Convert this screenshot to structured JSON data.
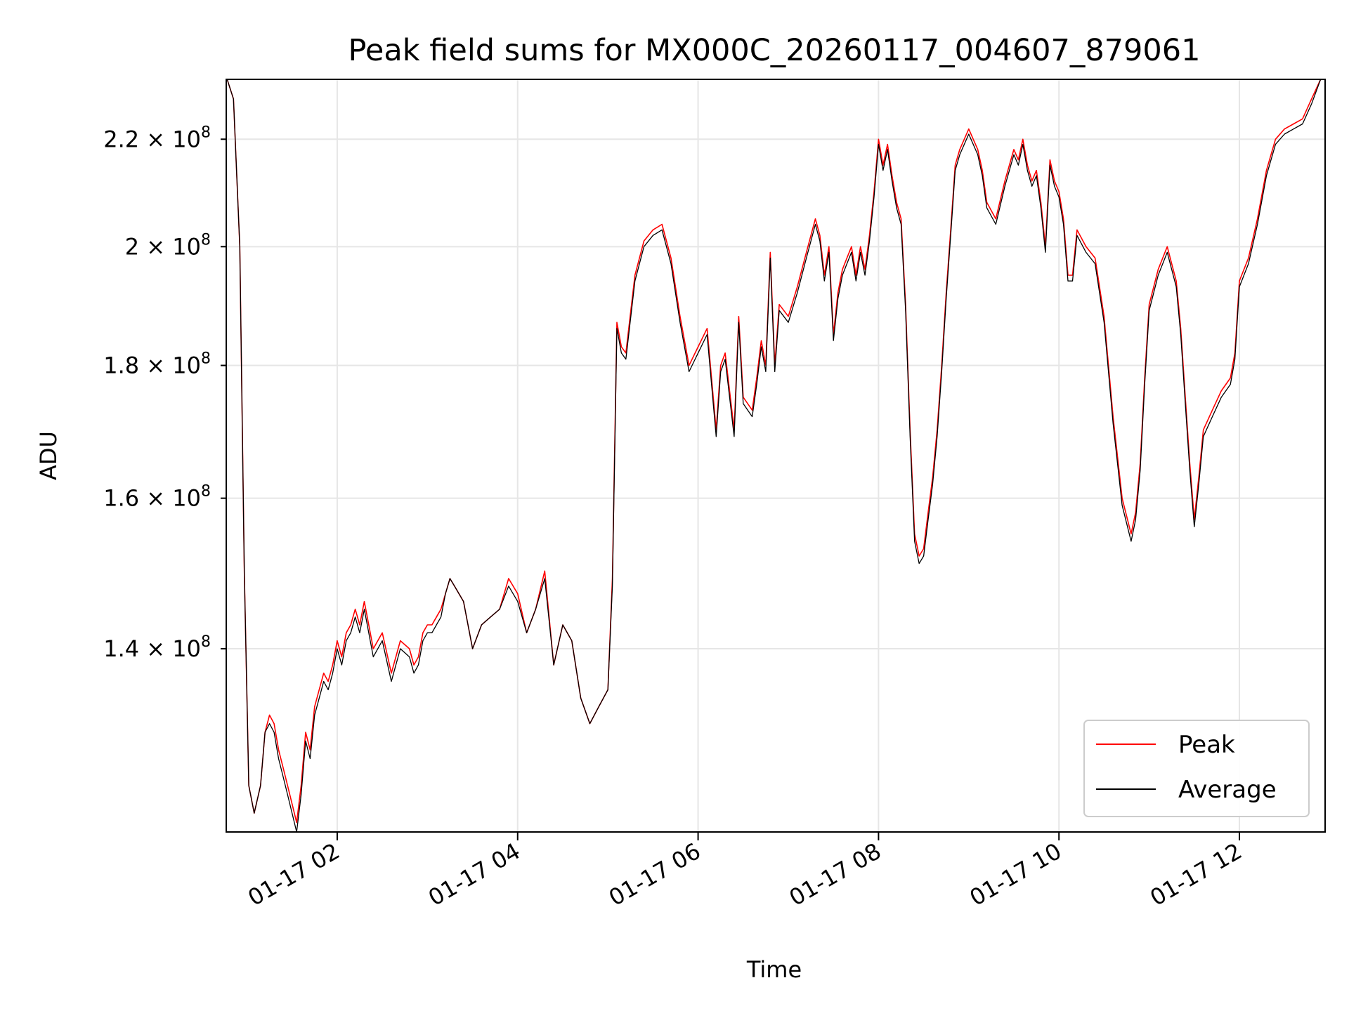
{
  "chart_data": {
    "type": "line",
    "title": "Peak field sums for MX000C_20260117_004607_879061",
    "xlabel": "Time",
    "ylabel": "ADU",
    "yscale": "log",
    "ylim": [
      119000000,
      232000000
    ],
    "xlim": [
      0.77,
      12.95
    ],
    "grid": true,
    "legend_position": "lower-right",
    "x_ticks": [
      {
        "value": 2,
        "label": "01-17 02"
      },
      {
        "value": 4,
        "label": "01-17 04"
      },
      {
        "value": 6,
        "label": "01-17 06"
      },
      {
        "value": 8,
        "label": "01-17 08"
      },
      {
        "value": 10,
        "label": "01-17 10"
      },
      {
        "value": 12,
        "label": "01-17 12"
      }
    ],
    "y_ticks": [
      {
        "value": 140000000,
        "mantissa": "1.4",
        "base": "10",
        "exp": "8"
      },
      {
        "value": 160000000,
        "mantissa": "1.6",
        "base": "10",
        "exp": "8"
      },
      {
        "value": 180000000,
        "mantissa": "1.8",
        "base": "10",
        "exp": "8"
      },
      {
        "value": 200000000,
        "mantissa": "2",
        "base": "10",
        "exp": "8"
      },
      {
        "value": 220000000,
        "mantissa": "2.2",
        "base": "10",
        "exp": "8"
      }
    ],
    "x_hours": [
      0.78,
      0.85,
      0.92,
      0.97,
      1.02,
      1.08,
      1.15,
      1.2,
      1.25,
      1.3,
      1.35,
      1.4,
      1.45,
      1.5,
      1.55,
      1.6,
      1.65,
      1.7,
      1.75,
      1.8,
      1.85,
      1.9,
      1.95,
      2.0,
      2.05,
      2.1,
      2.15,
      2.2,
      2.25,
      2.3,
      2.4,
      2.5,
      2.6,
      2.7,
      2.8,
      2.85,
      2.9,
      2.95,
      3.0,
      3.05,
      3.1,
      3.15,
      3.2,
      3.25,
      3.3,
      3.4,
      3.5,
      3.6,
      3.7,
      3.8,
      3.9,
      4.0,
      4.1,
      4.2,
      4.3,
      4.4,
      4.5,
      4.55,
      4.6,
      4.7,
      4.8,
      4.9,
      5.0,
      5.05,
      5.1,
      5.15,
      5.2,
      5.3,
      5.4,
      5.5,
      5.6,
      5.7,
      5.8,
      5.9,
      6.0,
      6.1,
      6.2,
      6.25,
      6.3,
      6.4,
      6.45,
      6.5,
      6.6,
      6.65,
      6.7,
      6.75,
      6.8,
      6.85,
      6.9,
      7.0,
      7.1,
      7.2,
      7.3,
      7.35,
      7.4,
      7.45,
      7.5,
      7.55,
      7.6,
      7.65,
      7.7,
      7.75,
      7.8,
      7.85,
      7.9,
      7.95,
      8.0,
      8.05,
      8.1,
      8.15,
      8.2,
      8.25,
      8.3,
      8.35,
      8.4,
      8.45,
      8.5,
      8.55,
      8.6,
      8.65,
      8.7,
      8.75,
      8.8,
      8.85,
      8.9,
      8.95,
      9.0,
      9.05,
      9.1,
      9.15,
      9.2,
      9.3,
      9.4,
      9.5,
      9.55,
      9.6,
      9.65,
      9.7,
      9.75,
      9.8,
      9.85,
      9.9,
      9.95,
      10.0,
      10.05,
      10.1,
      10.15,
      10.2,
      10.3,
      10.4,
      10.5,
      10.6,
      10.7,
      10.8,
      10.85,
      10.9,
      10.95,
      11.0,
      11.1,
      11.2,
      11.3,
      11.35,
      11.4,
      11.45,
      11.5,
      11.55,
      11.6,
      11.7,
      11.8,
      11.9,
      11.95,
      12.0,
      12.1,
      12.2,
      12.3,
      12.4,
      12.5,
      12.6,
      12.7,
      12.8,
      12.9
    ],
    "series": [
      {
        "name": "Peak",
        "color": "#ff0000",
        "values": [
          232,
          228,
          200,
          150,
          124,
          121,
          124,
          130,
          132,
          131,
          128,
          126,
          124,
          122,
          120,
          124,
          130,
          128,
          133,
          135,
          137,
          136,
          138,
          141,
          139,
          142,
          143,
          145,
          143,
          146,
          140,
          142,
          137,
          141,
          140,
          138,
          139,
          142,
          143,
          143,
          144,
          145,
          147,
          149,
          148,
          146,
          140,
          143,
          144,
          145,
          149,
          147,
          142,
          145,
          150,
          138,
          143,
          142,
          141,
          134,
          131,
          133,
          135,
          149,
          187,
          183,
          182,
          195,
          201,
          203,
          204,
          198,
          188,
          180,
          183,
          186,
          170,
          180,
          182,
          170,
          188,
          175,
          173,
          178,
          184,
          180,
          199,
          180,
          190,
          188,
          193,
          199,
          205,
          202,
          195,
          200,
          185,
          192,
          196,
          198,
          200,
          195,
          200,
          196,
          202,
          210,
          220,
          215,
          219,
          213,
          208,
          205,
          190,
          170,
          155,
          152,
          153,
          158,
          163,
          170,
          180,
          192,
          203,
          215,
          218,
          220,
          222,
          220,
          218,
          214,
          208,
          205,
          212,
          218,
          216,
          220,
          215,
          212,
          214,
          208,
          200,
          216,
          212,
          210,
          205,
          195,
          195,
          203,
          200,
          198,
          188,
          172,
          160,
          155,
          158,
          165,
          178,
          190,
          196,
          200,
          194,
          186,
          175,
          165,
          157,
          163,
          170,
          173,
          176,
          178,
          182,
          194,
          198,
          205,
          214,
          220,
          222,
          223,
          224,
          228,
          232
        ]
      },
      {
        "name": "Average",
        "color": "#000000",
        "values": [
          232,
          228,
          200,
          150,
          124,
          121,
          124,
          130,
          131,
          130,
          127,
          125,
          123,
          121,
          119,
          123,
          129,
          127,
          132,
          134,
          136,
          135,
          137,
          140,
          138,
          141,
          142,
          144,
          142,
          145,
          139,
          141,
          136,
          140,
          139,
          137,
          138,
          141,
          142,
          142,
          143,
          144,
          147,
          149,
          148,
          146,
          140,
          143,
          144,
          145,
          148,
          146,
          142,
          145,
          149,
          138,
          143,
          142,
          141,
          134,
          131,
          133,
          135,
          148,
          186,
          182,
          181,
          194,
          200,
          202,
          203,
          197,
          187,
          179,
          182,
          185,
          169,
          179,
          181,
          169,
          187,
          174,
          172,
          177,
          183,
          179,
          198,
          179,
          189,
          187,
          192,
          198,
          204,
          201,
          194,
          199,
          184,
          191,
          195,
          197,
          199,
          194,
          199,
          195,
          201,
          209,
          219,
          214,
          218,
          212,
          207,
          204,
          189,
          169,
          154,
          151,
          152,
          157,
          162,
          169,
          179,
          191,
          202,
          214,
          217,
          219,
          221,
          219,
          217,
          213,
          207,
          204,
          211,
          217,
          215,
          219,
          214,
          211,
          213,
          207,
          199,
          215,
          211,
          209,
          204,
          194,
          194,
          202,
          199,
          197,
          187,
          171,
          159,
          154,
          157,
          164,
          177,
          189,
          195,
          199,
          193,
          185,
          174,
          164,
          156,
          162,
          169,
          172,
          175,
          177,
          181,
          193,
          197,
          204,
          213,
          219,
          221,
          222,
          223,
          227,
          232
        ]
      }
    ],
    "values_unit": "millions of ADU (x1e6)"
  }
}
